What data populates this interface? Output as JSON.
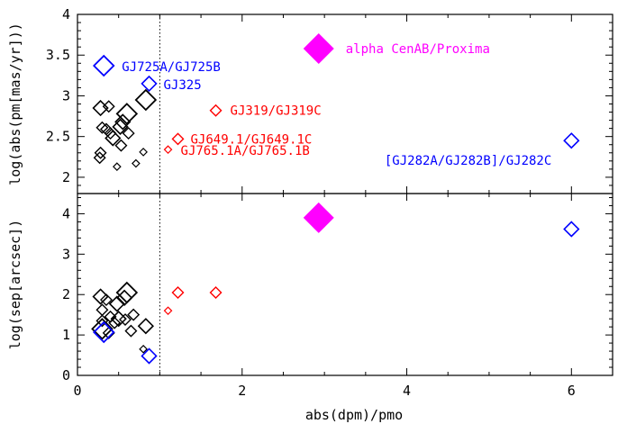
{
  "chart_data": [
    {
      "type": "scatter",
      "panel": "top",
      "xlabel": "",
      "ylabel": "log(abs(pm[mas/yr]))",
      "xlim": [
        0,
        6.5
      ],
      "ylim": [
        1.8,
        4.0
      ],
      "yticks": [
        "2",
        "2.5",
        "3",
        "3.5",
        "4"
      ],
      "reference_line_x": 1,
      "series": [
        {
          "color": "#000000",
          "points": [
            {
              "x": 0.28,
              "y": 2.85,
              "s": "m"
            },
            {
              "x": 0.38,
              "y": 2.87,
              "s": "s"
            },
            {
              "x": 0.6,
              "y": 2.78,
              "s": "l"
            },
            {
              "x": 0.83,
              "y": 2.95,
              "s": "l"
            },
            {
              "x": 0.3,
              "y": 2.61,
              "s": "s"
            },
            {
              "x": 0.35,
              "y": 2.59,
              "s": "s"
            },
            {
              "x": 0.4,
              "y": 2.54,
              "s": "s"
            },
            {
              "x": 0.52,
              "y": 2.62,
              "s": "m"
            },
            {
              "x": 0.55,
              "y": 2.68,
              "s": "m"
            },
            {
              "x": 0.62,
              "y": 2.54,
              "s": "s"
            },
            {
              "x": 0.43,
              "y": 2.48,
              "s": "m"
            },
            {
              "x": 0.53,
              "y": 2.39,
              "s": "s"
            },
            {
              "x": 0.28,
              "y": 2.3,
              "s": "s"
            },
            {
              "x": 0.27,
              "y": 2.24,
              "s": "s"
            },
            {
              "x": 0.48,
              "y": 2.13,
              "s": "xs"
            },
            {
              "x": 0.71,
              "y": 2.17,
              "s": "xs"
            },
            {
              "x": 0.8,
              "y": 2.31,
              "s": "xs"
            }
          ]
        },
        {
          "color": "#0000ff",
          "points": [
            {
              "x": 0.32,
              "y": 3.37,
              "s": "l",
              "label": "GJ725A/GJ725B"
            },
            {
              "x": 0.87,
              "y": 3.15,
              "s": "m",
              "label": "GJ325"
            },
            {
              "x": 6.0,
              "y": 2.45,
              "s": "m",
              "label": "[GJ282A/GJ282B]/GJ282C"
            }
          ]
        },
        {
          "color": "#ff0000",
          "points": [
            {
              "x": 1.68,
              "y": 2.82,
              "s": "s",
              "label": "GJ319/GJ319C"
            },
            {
              "x": 1.22,
              "y": 2.47,
              "s": "s",
              "label": "GJ649.1/GJ649.1C"
            },
            {
              "x": 1.1,
              "y": 2.34,
              "s": "xs",
              "label": "GJ765.1A/GJ765.1B"
            }
          ]
        },
        {
          "color": "#ff00ff",
          "points": [
            {
              "x": 2.93,
              "y": 3.58,
              "s": "xl",
              "label": "alpha CenAB/Proxima"
            }
          ]
        }
      ]
    },
    {
      "type": "scatter",
      "panel": "bottom",
      "xlabel": "abs(dpm)/pmo",
      "ylabel": "log(sep[arcsec])",
      "xlim": [
        0,
        6.5
      ],
      "ylim": [
        0,
        4.5
      ],
      "xticks": [
        "0",
        "2",
        "4",
        "6"
      ],
      "yticks": [
        "0",
        "1",
        "2",
        "3",
        "4"
      ],
      "reference_line_x": 1,
      "series": [
        {
          "color": "#000000",
          "points": [
            {
              "x": 0.28,
              "y": 1.95,
              "s": "m"
            },
            {
              "x": 0.35,
              "y": 1.87,
              "s": "s"
            },
            {
              "x": 0.6,
              "y": 2.05,
              "s": "l"
            },
            {
              "x": 0.57,
              "y": 1.92,
              "s": "m"
            },
            {
              "x": 0.48,
              "y": 1.77,
              "s": "m"
            },
            {
              "x": 0.3,
              "y": 1.62,
              "s": "s"
            },
            {
              "x": 0.4,
              "y": 1.45,
              "s": "s"
            },
            {
              "x": 0.5,
              "y": 1.4,
              "s": "m"
            },
            {
              "x": 0.58,
              "y": 1.38,
              "s": "s"
            },
            {
              "x": 0.68,
              "y": 1.5,
              "s": "s"
            },
            {
              "x": 0.3,
              "y": 1.35,
              "s": "s"
            },
            {
              "x": 0.45,
              "y": 1.3,
              "s": "s"
            },
            {
              "x": 0.83,
              "y": 1.22,
              "s": "m"
            },
            {
              "x": 0.65,
              "y": 1.1,
              "s": "s"
            },
            {
              "x": 0.3,
              "y": 1.15,
              "s": "l"
            },
            {
              "x": 0.8,
              "y": 0.65,
              "s": "xs"
            },
            {
              "x": 0.38,
              "y": 1.05,
              "s": "s"
            }
          ]
        },
        {
          "color": "#0000ff",
          "points": [
            {
              "x": 0.32,
              "y": 1.07,
              "s": "l"
            },
            {
              "x": 0.87,
              "y": 0.48,
              "s": "m"
            },
            {
              "x": 6.0,
              "y": 3.62,
              "s": "m"
            }
          ]
        },
        {
          "color": "#ff0000",
          "points": [
            {
              "x": 1.68,
              "y": 2.05,
              "s": "s"
            },
            {
              "x": 1.22,
              "y": 2.05,
              "s": "s"
            },
            {
              "x": 1.1,
              "y": 1.6,
              "s": "xs"
            }
          ]
        },
        {
          "color": "#ff00ff",
          "points": [
            {
              "x": 2.93,
              "y": 3.9,
              "s": "xl"
            }
          ]
        }
      ]
    }
  ]
}
